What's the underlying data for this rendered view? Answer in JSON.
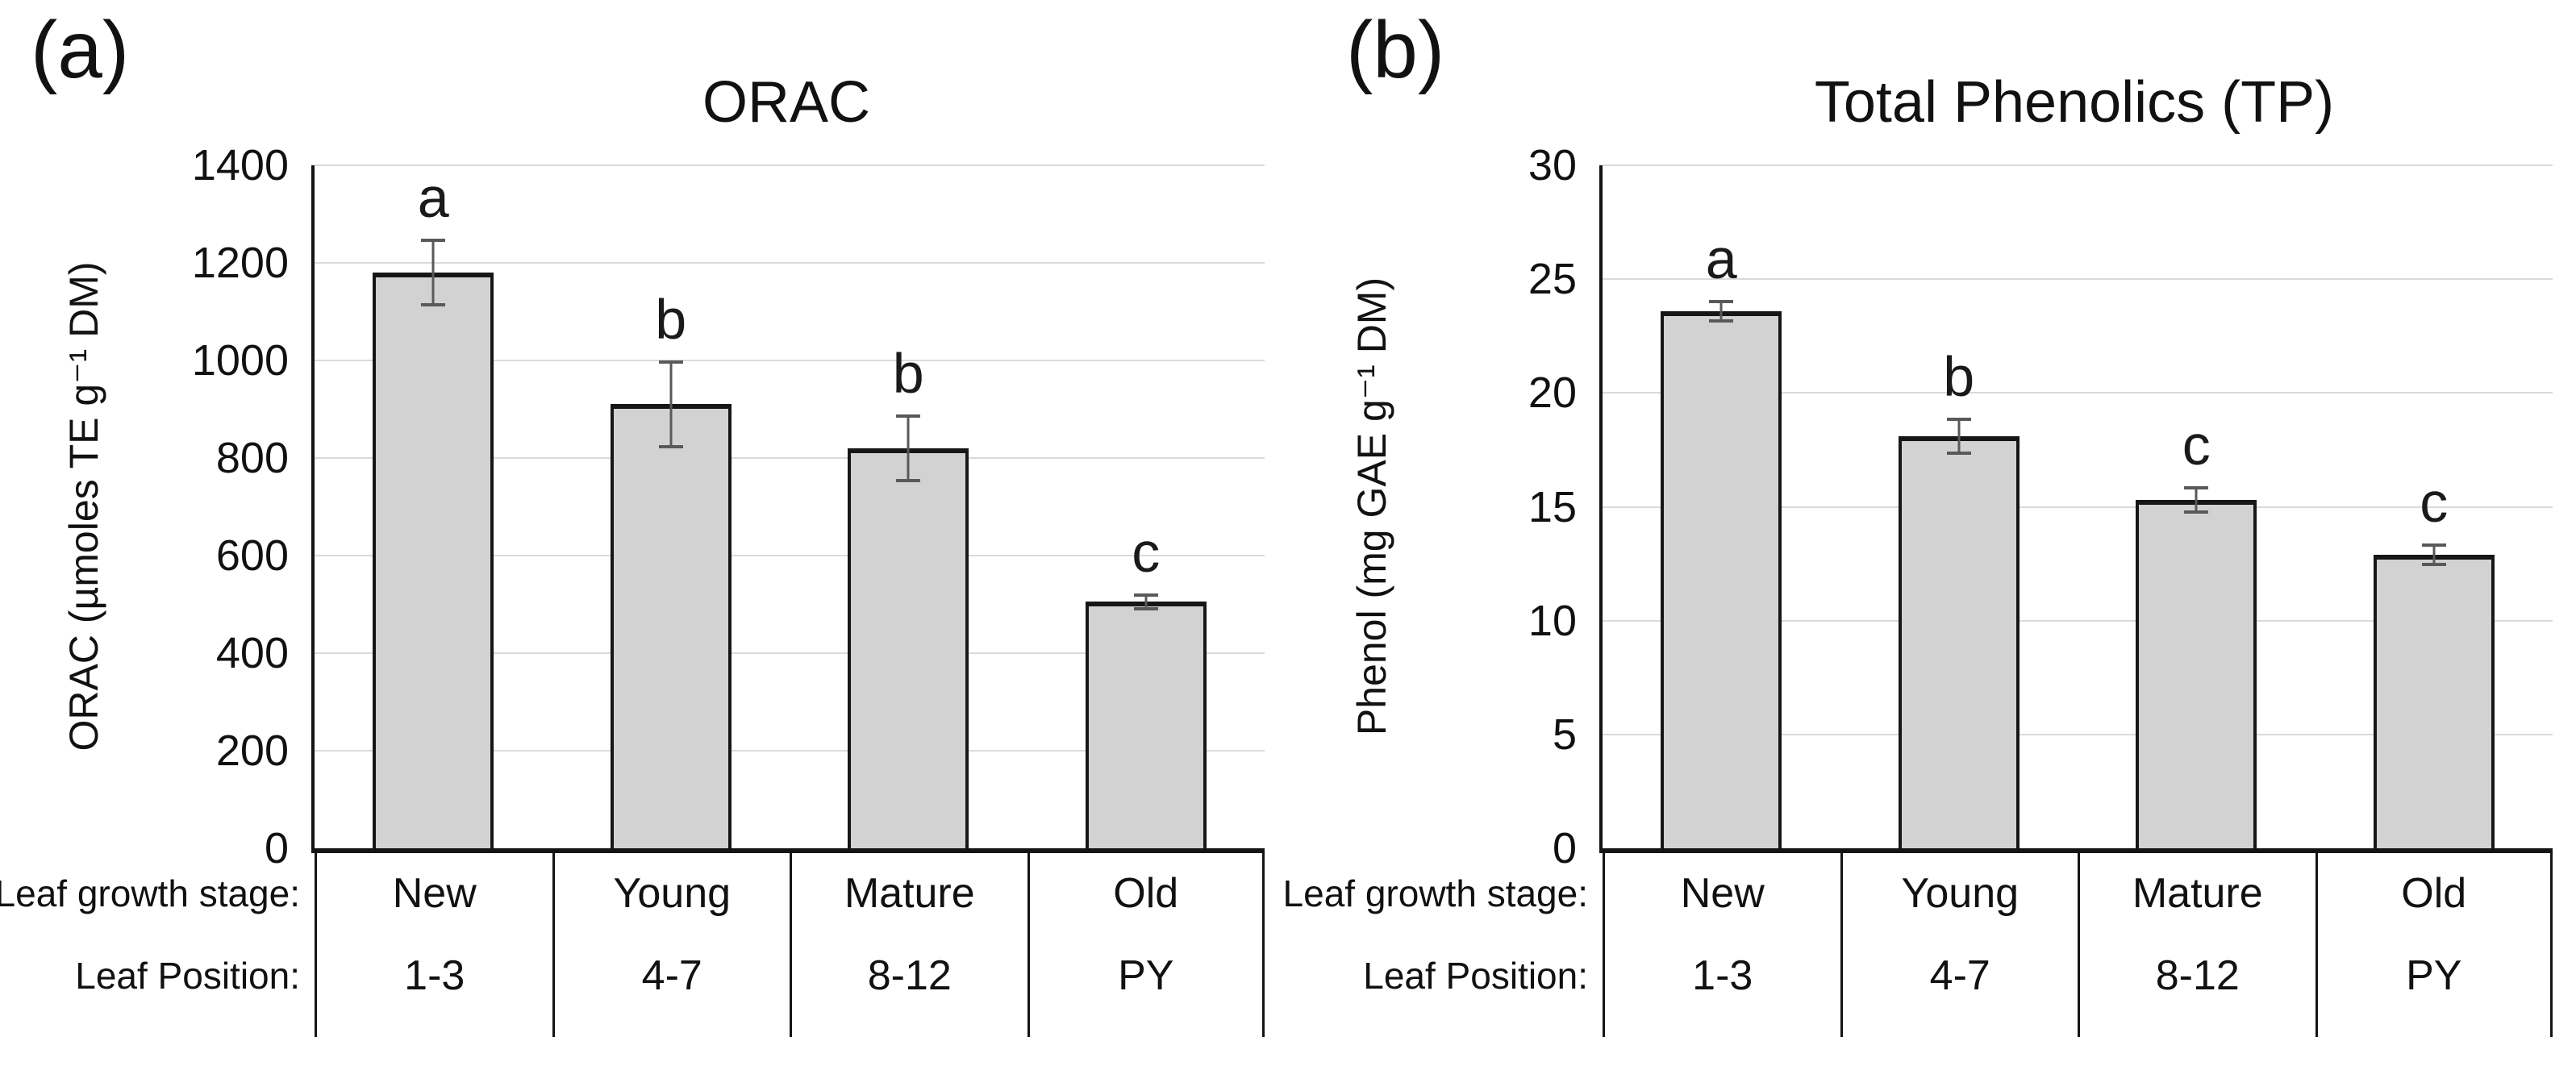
{
  "figure": {
    "background_color": "#ffffff",
    "text_color": "#1a1a1a",
    "axis_color": "#141414",
    "gridline_color": "#dadada"
  },
  "chart_data": [
    {
      "type": "bar",
      "panel_label": "(a)",
      "title": "ORAC",
      "xlabel": "",
      "ylabel": "ORAC (µmoles TE g⁻¹ DM)",
      "ylim": [
        0,
        1400
      ],
      "ystep": 200,
      "grid": true,
      "legend": "none",
      "bar_color": "#d2d2d2",
      "bar_border_color": "#161616",
      "error_color": "#595959",
      "row_labels": [
        "Leaf growth stage:",
        "Leaf Position:"
      ],
      "categories": [
        "New",
        "Young",
        "Mature",
        "Old"
      ],
      "leaf_positions": [
        "1-3",
        "4-7",
        "8-12",
        "PY"
      ],
      "values": [
        1180,
        910,
        820,
        505
      ],
      "errors": [
        70,
        90,
        70,
        18
      ],
      "sig_letters": [
        "a",
        "b",
        "b",
        "c"
      ]
    },
    {
      "type": "bar",
      "panel_label": "(b)",
      "title": "Total Phenolics (TP)",
      "xlabel": "",
      "ylabel": "Phenol (mg GAE g⁻¹ DM)",
      "ylim": [
        0,
        30
      ],
      "ystep": 5,
      "grid": true,
      "legend": "none",
      "bar_color": "#d2d2d2",
      "bar_border_color": "#161616",
      "error_color": "#595959",
      "row_labels": [
        "Leaf growth stage:",
        "Leaf Position:"
      ],
      "categories": [
        "New",
        "Young",
        "Mature",
        "Old"
      ],
      "leaf_positions": [
        "1-3",
        "4-7",
        "8-12",
        "PY"
      ],
      "values": [
        23.6,
        18.1,
        15.3,
        12.9
      ],
      "errors": [
        0.5,
        0.8,
        0.6,
        0.5
      ],
      "sig_letters": [
        "a",
        "b",
        "c",
        "c"
      ]
    }
  ]
}
